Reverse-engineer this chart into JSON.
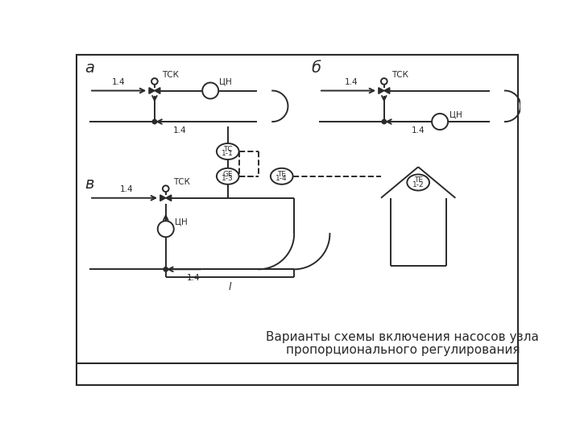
{
  "title_line1": "Варианты схемы включения насосов узла",
  "title_line2": "пропорционального регулирования",
  "bg_color": "#ffffff",
  "line_color": "#2a2a2a",
  "label_a": "а",
  "label_b": "б",
  "label_v": "в"
}
